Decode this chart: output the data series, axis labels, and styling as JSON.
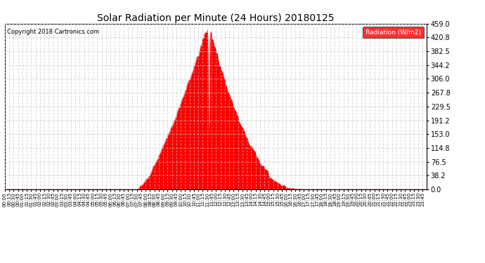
{
  "title": "Solar Radiation per Minute (24 Hours) 20180125",
  "copyright_text": "Copyright 2018 Cartronics.com",
  "legend_label": "Radiation (W/m2)",
  "background_color": "#ffffff",
  "plot_bg_color": "#ffffff",
  "fill_color": "#ff0000",
  "line_color": "#ff0000",
  "dashed_line_color": "#ff0000",
  "grid_color": "#c0c0c0",
  "ylim": [
    0.0,
    459.0
  ],
  "yticks": [
    0.0,
    38.2,
    76.5,
    114.8,
    153.0,
    191.2,
    229.5,
    267.8,
    306.0,
    344.2,
    382.5,
    420.8,
    459.0
  ],
  "total_minutes": 1440,
  "sunrise_minute": 455,
  "sunset_minute": 1010,
  "peak_minute": 695,
  "peak_value": 459.0
}
